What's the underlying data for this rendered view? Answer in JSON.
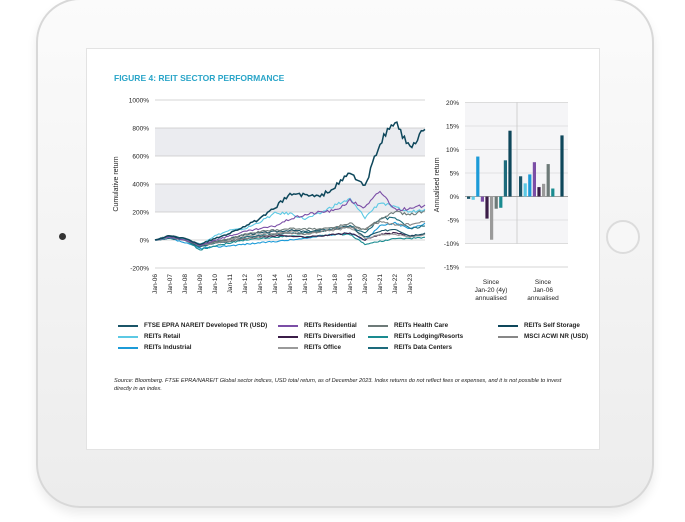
{
  "title": "FIGURE 4: REIT SECTOR PERFORMANCE",
  "source": "Source: Bloomberg. FTSE EPRA/NAREIT Global sector indices, USD total return, as of December 2023. Index returns do not reflect fees or expenses, and it is not possible to invest directly in an index.",
  "chart_data": [
    {
      "type": "line",
      "ylabel": "Cumulative return",
      "ylim": [
        -200,
        1000
      ],
      "yticks": [
        "-200%",
        "0%",
        "200%",
        "400%",
        "600%",
        "800%",
        "1000%"
      ],
      "ytick_values": [
        -200,
        0,
        200,
        400,
        600,
        800,
        1000
      ],
      "xticks": [
        "Jan-06",
        "Jan-07",
        "Jan-08",
        "Jan-09",
        "Jan-10",
        "Jan-11",
        "Jan-12",
        "Jan-13",
        "Jan-14",
        "Jan-15",
        "Jan-16",
        "Jan-17",
        "Jan-18",
        "Jan-19",
        "Jan-20",
        "Jan-21",
        "Jan-22",
        "Jan-23"
      ],
      "x": [
        2006,
        2007,
        2008,
        2009,
        2010,
        2011,
        2012,
        2013,
        2014,
        2015,
        2016,
        2017,
        2018,
        2019,
        2020,
        2021,
        2022,
        2023,
        2024
      ],
      "series": [
        {
          "name": "FTSE EPRA NAREIT Developed TR (USD)",
          "color": "#1b5568",
          "values": [
            0,
            30,
            10,
            -50,
            -10,
            10,
            40,
            50,
            60,
            70,
            60,
            70,
            80,
            100,
            20,
            60,
            80,
            30,
            50
          ]
        },
        {
          "name": "REITs Retail",
          "color": "#5cc9e4",
          "values": [
            0,
            20,
            10,
            -30,
            30,
            70,
            80,
            130,
            190,
            190,
            150,
            190,
            250,
            290,
            160,
            270,
            230,
            200,
            220
          ]
        },
        {
          "name": "REITs Industrial",
          "color": "#1c9bd8",
          "values": [
            0,
            10,
            -20,
            -60,
            -50,
            -40,
            -30,
            -20,
            -10,
            0,
            10,
            30,
            40,
            50,
            0,
            100,
            120,
            80,
            120
          ]
        },
        {
          "name": "REITs Residential",
          "color": "#7b4ea6",
          "values": [
            0,
            20,
            0,
            -40,
            0,
            30,
            60,
            80,
            100,
            150,
            180,
            200,
            210,
            280,
            230,
            350,
            220,
            220,
            250
          ]
        },
        {
          "name": "REITs Diversified",
          "color": "#3b1d48",
          "values": [
            0,
            20,
            0,
            -40,
            -20,
            -10,
            10,
            20,
            30,
            30,
            20,
            30,
            40,
            50,
            0,
            40,
            50,
            30,
            40
          ]
        },
        {
          "name": "REITs Office",
          "color": "#9a9a9a",
          "values": [
            0,
            30,
            10,
            -50,
            -20,
            0,
            30,
            40,
            50,
            60,
            50,
            60,
            70,
            90,
            10,
            40,
            40,
            20,
            40
          ]
        },
        {
          "name": "REITs Health Care",
          "color": "#6d7a78",
          "values": [
            0,
            20,
            0,
            -40,
            -10,
            10,
            40,
            60,
            70,
            80,
            80,
            80,
            90,
            120,
            70,
            150,
            200,
            180,
            210
          ]
        },
        {
          "name": "REITs Lodging/Resorts",
          "color": "#1a8b90",
          "values": [
            0,
            30,
            0,
            -70,
            -40,
            -20,
            0,
            10,
            20,
            30,
            20,
            30,
            40,
            40,
            -30,
            -10,
            10,
            10,
            20
          ]
        },
        {
          "name": "REITs Data Centers",
          "color": "#1d6b7c",
          "values": [
            0,
            10,
            0,
            -50,
            -20,
            -10,
            20,
            30,
            40,
            50,
            50,
            60,
            80,
            100,
            50,
            150,
            160,
            80,
            100
          ]
        },
        {
          "name": "REITs Self Storage",
          "color": "#0e475b",
          "values": [
            0,
            30,
            10,
            -30,
            10,
            50,
            100,
            150,
            230,
            330,
            320,
            310,
            380,
            480,
            380,
            700,
            850,
            650,
            790
          ]
        },
        {
          "name": "MSCI ACWI NR (USD)",
          "color": "#878787",
          "values": [
            0,
            20,
            0,
            -40,
            -20,
            -10,
            10,
            20,
            40,
            50,
            40,
            60,
            80,
            90,
            80,
            130,
            110,
            110,
            130
          ]
        }
      ]
    },
    {
      "type": "bar",
      "ylabel": "Annualised return",
      "ylim": [
        -15,
        20
      ],
      "yticks": [
        "-15%",
        "-10%",
        "-5%",
        "0%",
        "5%",
        "10%",
        "15%",
        "20%"
      ],
      "ytick_values": [
        -15,
        -10,
        -5,
        0,
        5,
        10,
        15,
        20
      ],
      "categories": [
        "Since Jan-20 (4y) annualised",
        "Since Jan-06 annualised"
      ],
      "series": [
        {
          "name": "FTSE EPRA NAREIT Developed TR (USD)",
          "values": [
            -0.5,
            4.3
          ]
        },
        {
          "name": "REITs Retail",
          "values": [
            -0.7,
            2.8
          ]
        },
        {
          "name": "REITs Industrial",
          "values": [
            8.5,
            4.7
          ]
        },
        {
          "name": "REITs Residential",
          "values": [
            -1.1,
            7.3
          ]
        },
        {
          "name": "REITs Diversified",
          "values": [
            -4.7,
            2.0
          ]
        },
        {
          "name": "REITs Office",
          "values": [
            -9.2,
            2.7
          ]
        },
        {
          "name": "REITs Health Care",
          "values": [
            -2.6,
            6.9
          ]
        },
        {
          "name": "REITs Lodging/Resorts",
          "values": [
            -2.4,
            1.7
          ]
        },
        {
          "name": "REITs Data Centers",
          "values": [
            7.7,
            null
          ]
        },
        {
          "name": "REITs Self Storage",
          "values": [
            14.0,
            13.0
          ]
        },
        {
          "name": "MSCI ACWI NR (USD)",
          "values": [
            null,
            null
          ]
        }
      ]
    }
  ]
}
